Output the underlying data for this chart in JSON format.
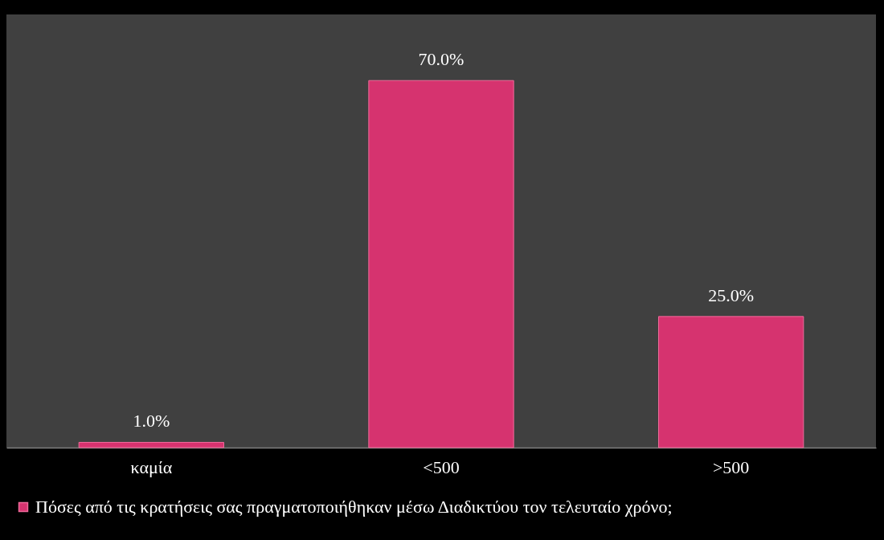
{
  "chart_data": {
    "type": "bar",
    "categories": [
      "καμία",
      "<500",
      ">500"
    ],
    "series": [
      {
        "name": "Πόσες από τις κρατήσεις σας πραγματοποιήθηκαν μέσω Διαδικτύου τον τελευταίο χρόνο;",
        "color": "#d6336f",
        "values": [
          1,
          70,
          25
        ],
        "value_labels": [
          "1.0%",
          "70.0%",
          "25.0%"
        ]
      }
    ],
    "legend": "bottom",
    "grid": false
  }
}
